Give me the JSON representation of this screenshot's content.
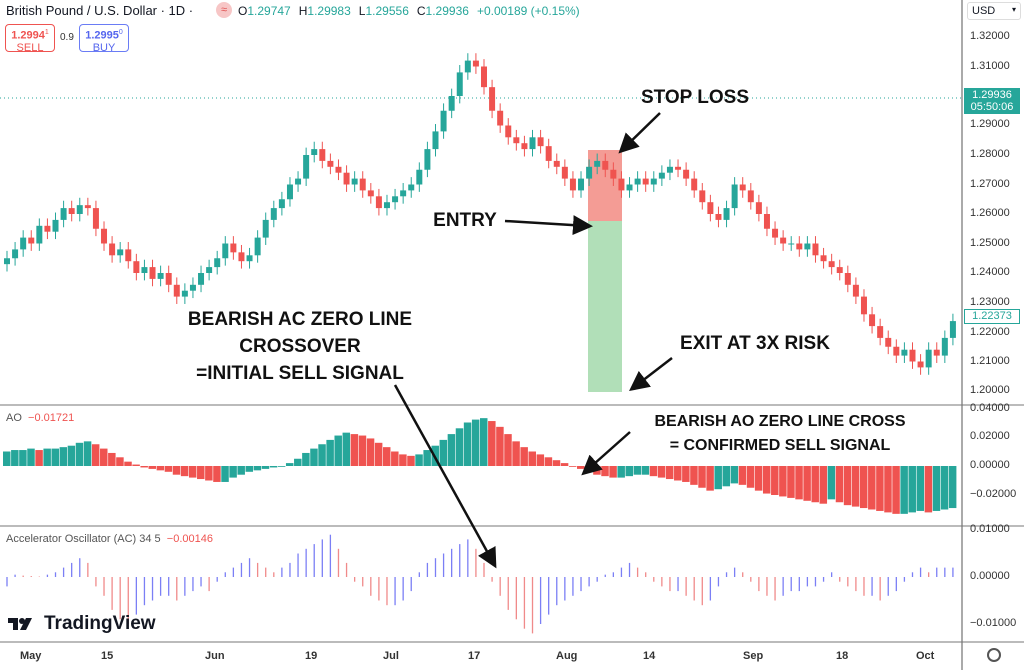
{
  "header": {
    "symbol": "British Pound / U.S. Dollar · 1D ·",
    "ohlc": {
      "o_label": "O",
      "o": "1.29747",
      "h_label": "H",
      "h": "1.29983",
      "l_label": "L",
      "l": "1.29556",
      "c_label": "C",
      "c": "1.29936",
      "change": "+0.00189 (+0.15%)"
    },
    "sell": {
      "price": "1.2994",
      "sup": "1",
      "label": "SELL"
    },
    "spread": "0.9",
    "buy": {
      "price": "1.2995",
      "sup": "0",
      "label": "BUY"
    }
  },
  "currency": "USD",
  "price_axis": [
    "1.32000",
    "1.31000",
    "1.29000",
    "1.28000",
    "1.27000",
    "1.26000",
    "1.25000",
    "1.24000",
    "1.23000",
    "1.22000",
    "1.21000",
    "1.20000"
  ],
  "last_price": {
    "value": "1.29936",
    "countdown": "05:50:06"
  },
  "marker_price": "1.22373",
  "ao_axis": [
    "0.04000",
    "0.02000",
    "0.00000",
    "−0.02000"
  ],
  "ac_axis": [
    "0.01000",
    "0.00000",
    "−0.01000"
  ],
  "time_axis": [
    "May",
    "15",
    "Jun",
    "19",
    "Jul",
    "17",
    "Aug",
    "14",
    "Sep",
    "18",
    "Oct"
  ],
  "ao_pane": {
    "title": "AO",
    "value": "−0.01721"
  },
  "ac_pane": {
    "title": "Accelerator Oscillator (AC) 34 5",
    "value": "−0.00146"
  },
  "logo": "TradingView",
  "annotations": {
    "stop_loss": "STOP LOSS",
    "entry": "ENTRY",
    "exit": "EXIT AT 3X RISK",
    "ac_signal": [
      "BEARISH AC ZERO LINE",
      "CROSSOVER",
      "=INITIAL SELL SIGNAL"
    ],
    "ao_signal": [
      "BEARISH AO ZERO LINE CROSS",
      "= CONFIRMED SELL SIGNAL"
    ]
  },
  "colors": {
    "up": "#26a69a",
    "down": "#ef5350",
    "ac_up": "#7b7ff5",
    "ac_down": "#f08a8a",
    "stop_zone": "#f28b82",
    "target_zone": "#a8dcb0"
  },
  "chart_data": {
    "type": "candlestick",
    "ylim": [
      1.2,
      1.32
    ],
    "close": [
      1.245,
      1.248,
      1.252,
      1.25,
      1.256,
      1.254,
      1.258,
      1.262,
      1.26,
      1.263,
      1.262,
      1.255,
      1.25,
      1.246,
      1.248,
      1.244,
      1.24,
      1.242,
      1.238,
      1.24,
      1.236,
      1.232,
      1.234,
      1.236,
      1.24,
      1.242,
      1.245,
      1.25,
      1.247,
      1.244,
      1.246,
      1.252,
      1.258,
      1.262,
      1.265,
      1.27,
      1.272,
      1.28,
      1.282,
      1.278,
      1.276,
      1.274,
      1.27,
      1.272,
      1.268,
      1.266,
      1.262,
      1.264,
      1.266,
      1.268,
      1.27,
      1.275,
      1.282,
      1.288,
      1.295,
      1.3,
      1.308,
      1.312,
      1.31,
      1.303,
      1.295,
      1.29,
      1.286,
      1.284,
      1.282,
      1.286,
      1.283,
      1.278,
      1.276,
      1.272,
      1.268,
      1.272,
      1.276,
      1.278,
      1.275,
      1.272,
      1.268,
      1.27,
      1.272,
      1.27,
      1.272,
      1.274,
      1.276,
      1.275,
      1.272,
      1.268,
      1.264,
      1.26,
      1.258,
      1.262,
      1.27,
      1.268,
      1.264,
      1.26,
      1.255,
      1.252,
      1.25,
      1.25,
      1.248,
      1.25,
      1.246,
      1.244,
      1.242,
      1.24,
      1.236,
      1.232,
      1.226,
      1.222,
      1.218,
      1.215,
      1.212,
      1.214,
      1.21,
      1.208,
      1.214,
      1.212,
      1.218,
      1.2237
    ],
    "ao": [
      0.01,
      0.011,
      0.011,
      0.012,
      0.011,
      0.012,
      0.012,
      0.013,
      0.014,
      0.016,
      0.017,
      0.015,
      0.012,
      0.009,
      0.006,
      0.003,
      0.001,
      -0.001,
      -0.002,
      -0.003,
      -0.004,
      -0.006,
      -0.007,
      -0.008,
      -0.009,
      -0.01,
      -0.011,
      -0.011,
      -0.008,
      -0.006,
      -0.004,
      -0.003,
      -0.002,
      -0.001,
      0.0,
      0.002,
      0.005,
      0.009,
      0.012,
      0.015,
      0.018,
      0.021,
      0.023,
      0.022,
      0.021,
      0.019,
      0.016,
      0.013,
      0.01,
      0.008,
      0.007,
      0.008,
      0.011,
      0.014,
      0.018,
      0.022,
      0.026,
      0.03,
      0.032,
      0.033,
      0.031,
      0.027,
      0.022,
      0.017,
      0.013,
      0.01,
      0.008,
      0.006,
      0.004,
      0.002,
      0.0,
      -0.002,
      -0.004,
      -0.006,
      -0.007,
      -0.008,
      -0.008,
      -0.007,
      -0.006,
      -0.006,
      -0.007,
      -0.008,
      -0.009,
      -0.01,
      -0.011,
      -0.013,
      -0.015,
      -0.017,
      -0.016,
      -0.014,
      -0.012,
      -0.013,
      -0.015,
      -0.017,
      -0.019,
      -0.02,
      -0.021,
      -0.022,
      -0.023,
      -0.024,
      -0.025,
      -0.026,
      -0.023,
      -0.025,
      -0.027,
      -0.028,
      -0.029,
      -0.03,
      -0.031,
      -0.032,
      -0.033,
      -0.033,
      -0.032,
      -0.031,
      -0.032,
      -0.031,
      -0.03,
      -0.029
    ],
    "ao_ylim": [
      -0.04,
      0.04
    ],
    "ac": [
      -0.002,
      0.0005,
      0.0003,
      0.0002,
      0.0001,
      0.0005,
      0.001,
      0.002,
      0.003,
      0.004,
      0.003,
      -0.002,
      -0.004,
      -0.007,
      -0.009,
      -0.01,
      -0.008,
      -0.006,
      -0.005,
      -0.004,
      -0.004,
      -0.005,
      -0.004,
      -0.003,
      -0.002,
      -0.003,
      -0.001,
      0.001,
      0.002,
      0.003,
      0.004,
      0.003,
      0.002,
      0.001,
      0.002,
      0.003,
      0.005,
      0.006,
      0.007,
      0.008,
      0.009,
      0.006,
      0.003,
      -0.001,
      -0.002,
      -0.004,
      -0.005,
      -0.006,
      -0.006,
      -0.005,
      -0.003,
      0.001,
      0.003,
      0.004,
      0.005,
      0.006,
      0.007,
      0.008,
      0.006,
      0.003,
      -0.001,
      -0.004,
      -0.007,
      -0.009,
      -0.011,
      -0.012,
      -0.01,
      -0.008,
      -0.006,
      -0.005,
      -0.004,
      -0.003,
      -0.002,
      -0.001,
      0.0005,
      0.001,
      0.002,
      0.003,
      0.002,
      0.001,
      -0.001,
      -0.002,
      -0.003,
      -0.003,
      -0.004,
      -0.005,
      -0.006,
      -0.005,
      -0.002,
      0.001,
      0.002,
      0.001,
      -0.001,
      -0.003,
      -0.004,
      -0.005,
      -0.004,
      -0.003,
      -0.003,
      -0.002,
      -0.002,
      -0.001,
      0.001,
      -0.001,
      -0.002,
      -0.003,
      -0.004,
      -0.004,
      -0.005,
      -0.004,
      -0.003,
      -0.001,
      0.001,
      0.002,
      0.001,
      0.002,
      0.002,
      0.002
    ],
    "ac_ylim": [
      -0.012,
      0.01
    ],
    "stop_loss": 1.282,
    "entry": 1.258,
    "target": 1.201
  }
}
